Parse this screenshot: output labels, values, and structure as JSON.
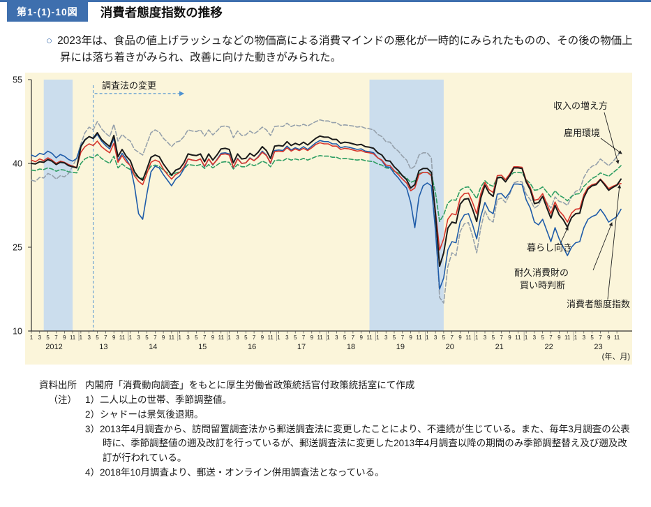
{
  "header": {
    "figure_no": "第1-(1)-10図",
    "title": "消費者態度指数の推移"
  },
  "summary": {
    "bullet": "○",
    "text": "2023年は、食品の値上げラッシュなどの物価高による消費マインドの悪化が一時的にみられたものの、その後の物価上昇には落ち着きがみられ、改善に向けた動きがみられた。"
  },
  "chart_data": {
    "type": "line",
    "title": "消費者態度指数の推移",
    "ylim": [
      10,
      55
    ],
    "yticks": [
      10,
      25,
      40,
      55
    ],
    "x_start": "2012-01",
    "x_end": "2023-12",
    "x_years": [
      "2012",
      "13",
      "14",
      "15",
      "16",
      "17",
      "18",
      "19",
      "20",
      "21",
      "22",
      "23"
    ],
    "month_ticks": [
      1,
      3,
      5,
      7,
      9,
      11
    ],
    "axis_note": "(年、月)",
    "grid": false,
    "recessions": [
      {
        "from_index": 3,
        "to_index": 10
      },
      {
        "from_index": 82,
        "to_index": 100
      }
    ],
    "survey_change": {
      "label": "調査法の変更",
      "index": 15
    },
    "colors": {
      "panel_bg": "#fbf5da",
      "recession_band": "#cbdded",
      "survey_annotation": "#4f92d1",
      "axis": "#333333"
    },
    "series": [
      {
        "name": "消費者態度指数",
        "color": "#1a1a1a",
        "dash": null,
        "width": 2,
        "values": [
          40.0,
          39.9,
          40.3,
          40.2,
          40.7,
          40.4,
          39.8,
          40.2,
          40.1,
          39.6,
          39.4,
          39.2,
          43.0,
          44.2,
          44.8,
          44.5,
          45.5,
          44.3,
          43.6,
          43.0,
          45.0,
          41.2,
          42.5,
          41.3,
          40.5,
          38.5,
          37.5,
          37.0,
          39.0,
          41.1,
          41.5,
          41.2,
          39.9,
          38.9,
          37.9,
          38.8,
          39.1,
          40.1,
          41.7,
          41.5,
          41.4,
          41.7,
          40.3,
          41.7,
          40.6,
          41.5,
          42.6,
          42.7,
          42.5,
          40.1,
          41.7,
          40.8,
          40.9,
          41.8,
          41.3,
          42.0,
          43.0,
          42.3,
          40.9,
          43.1,
          43.2,
          43.1,
          43.9,
          43.2,
          43.6,
          43.3,
          43.8,
          43.3,
          43.9,
          44.5,
          44.9,
          44.7,
          44.7,
          44.3,
          44.3,
          43.6,
          43.8,
          43.7,
          43.5,
          43.3,
          43.4,
          43.0,
          42.9,
          42.7,
          41.9,
          41.5,
          40.5,
          40.4,
          39.4,
          38.7,
          37.8,
          37.1,
          35.6,
          36.2,
          38.7,
          39.1,
          39.1,
          38.4,
          30.9,
          21.6,
          24.0,
          28.4,
          29.5,
          29.3,
          32.7,
          33.6,
          33.7,
          31.8,
          29.6,
          33.8,
          36.1,
          34.7,
          34.1,
          37.4,
          37.5,
          36.7,
          37.8,
          39.2,
          39.2,
          39.1,
          36.7,
          35.3,
          32.8,
          33.0,
          34.1,
          32.1,
          30.2,
          32.5,
          30.8,
          29.9,
          28.6,
          30.3,
          31.0,
          31.1,
          33.9,
          35.4,
          36.0,
          36.2,
          37.1,
          36.2,
          35.2,
          35.7,
          36.1,
          37.2
        ]
      },
      {
        "name": "暮らし向き",
        "color": "#d7362c",
        "dash": null,
        "width": 1.6,
        "values": [
          40.6,
          40.3,
          40.8,
          40.5,
          41.0,
          40.6,
          40.0,
          40.4,
          40.2,
          39.8,
          39.5,
          39.3,
          42.0,
          43.0,
          43.5,
          43.2,
          44.0,
          43.0,
          42.4,
          41.9,
          43.6,
          40.2,
          41.4,
          40.3,
          39.6,
          37.8,
          36.8,
          36.2,
          38.2,
          40.2,
          40.6,
          40.3,
          39.0,
          38.0,
          37.2,
          38.0,
          38.4,
          39.4,
          40.8,
          40.6,
          40.5,
          40.8,
          39.5,
          40.8,
          39.8,
          40.6,
          41.6,
          41.7,
          41.5,
          39.3,
          40.8,
          40.0,
          40.1,
          40.9,
          40.5,
          41.1,
          42.0,
          41.4,
          40.1,
          42.1,
          42.2,
          42.1,
          42.8,
          42.2,
          42.6,
          42.3,
          42.7,
          42.3,
          42.8,
          43.4,
          43.7,
          43.5,
          43.5,
          43.1,
          43.1,
          42.5,
          42.7,
          42.6,
          42.4,
          42.2,
          42.3,
          42.0,
          41.9,
          41.7,
          41.0,
          40.6,
          39.7,
          39.6,
          38.7,
          38.0,
          37.2,
          36.5,
          35.1,
          35.6,
          38.0,
          38.4,
          38.4,
          37.8,
          31.5,
          24.5,
          26.5,
          30.0,
          31.0,
          30.8,
          33.8,
          34.6,
          34.7,
          33.0,
          31.0,
          34.6,
          36.6,
          35.3,
          34.8,
          37.8,
          37.9,
          37.1,
          38.1,
          39.4,
          39.4,
          39.3,
          37.0,
          35.7,
          33.4,
          33.6,
          34.6,
          32.8,
          31.0,
          33.1,
          31.5,
          30.7,
          29.5,
          31.1,
          31.8,
          31.9,
          34.4,
          35.7,
          36.2,
          36.4,
          37.2,
          36.4,
          35.5,
          35.9,
          36.2,
          36.4
        ]
      },
      {
        "name": "収入の増え方",
        "color": "#2e9e63",
        "dash": "6 3",
        "width": 1.6,
        "values": [
          38.8,
          38.7,
          39.0,
          38.9,
          39.2,
          39.0,
          38.6,
          38.9,
          38.8,
          38.5,
          38.4,
          38.3,
          40.0,
          40.8,
          41.2,
          41.0,
          41.6,
          40.9,
          40.4,
          40.0,
          41.3,
          39.2,
          39.9,
          39.3,
          38.9,
          38.0,
          37.5,
          37.3,
          38.4,
          39.5,
          39.7,
          39.5,
          38.8,
          38.3,
          37.8,
          38.3,
          38.5,
          39.0,
          39.8,
          39.7,
          39.6,
          39.8,
          39.1,
          39.8,
          39.2,
          39.7,
          40.2,
          40.3,
          40.2,
          39.0,
          39.8,
          39.4,
          39.4,
          39.9,
          39.6,
          39.9,
          40.4,
          40.1,
          39.4,
          40.5,
          40.6,
          40.5,
          40.9,
          40.6,
          40.8,
          40.6,
          40.9,
          40.6,
          40.9,
          41.2,
          41.4,
          41.3,
          41.3,
          41.1,
          41.1,
          40.8,
          40.9,
          40.8,
          40.7,
          40.6,
          40.7,
          40.5,
          40.4,
          40.3,
          39.9,
          39.7,
          39.2,
          39.1,
          38.6,
          38.3,
          37.8,
          37.4,
          36.6,
          36.9,
          38.2,
          38.4,
          38.4,
          38.1,
          34.8,
          29.6,
          30.8,
          32.9,
          33.5,
          33.4,
          35.2,
          35.7,
          35.8,
          34.8,
          33.7,
          35.8,
          36.9,
          36.2,
          35.9,
          37.5,
          37.6,
          37.1,
          37.7,
          38.4,
          38.4,
          38.3,
          37.1,
          36.4,
          35.2,
          35.3,
          35.8,
          34.9,
          34.0,
          35.1,
          34.3,
          33.9,
          33.3,
          34.1,
          34.5,
          34.6,
          35.9,
          36.6,
          37.3,
          37.7,
          38.3,
          38.0,
          37.7,
          38.3,
          38.9,
          39.6
        ]
      },
      {
        "name": "雇用環境",
        "color": "#95a0ab",
        "dash": "6 3",
        "width": 1.6,
        "values": [
          37.0,
          36.8,
          37.5,
          37.4,
          38.2,
          37.9,
          37.2,
          37.8,
          37.6,
          38.2,
          39.5,
          41.0,
          43.5,
          45.5,
          46.5,
          46.0,
          47.5,
          46.2,
          45.4,
          44.8,
          47.0,
          44.0,
          45.2,
          44.5,
          44.0,
          42.5,
          42.0,
          41.5,
          43.5,
          45.5,
          46.0,
          45.6,
          44.5,
          43.8,
          43.0,
          43.8,
          44.0,
          44.8,
          46.0,
          45.8,
          45.7,
          46.0,
          44.9,
          46.0,
          45.1,
          45.8,
          46.6,
          46.7,
          46.5,
          44.6,
          45.8,
          45.0,
          45.1,
          45.8,
          45.3,
          45.8,
          46.5,
          46.0,
          45.0,
          46.6,
          46.7,
          46.6,
          47.2,
          46.6,
          46.9,
          46.7,
          47.0,
          46.7,
          47.1,
          47.5,
          47.8,
          47.6,
          47.6,
          47.3,
          47.3,
          46.8,
          46.9,
          46.8,
          46.7,
          46.5,
          46.6,
          46.3,
          46.2,
          46.0,
          45.2,
          44.8,
          43.9,
          43.8,
          42.8,
          42.2,
          41.3,
          40.6,
          39.0,
          39.5,
          41.5,
          41.9,
          41.9,
          41.0,
          30.0,
          16.0,
          15.0,
          21.5,
          24.0,
          23.5,
          27.8,
          29.2,
          29.4,
          27.0,
          24.0,
          28.5,
          31.5,
          30.0,
          29.5,
          33.5,
          33.8,
          33.0,
          34.5,
          36.5,
          36.8,
          36.7,
          34.5,
          33.5,
          32.0,
          32.5,
          34.0,
          33.0,
          32.0,
          34.0,
          33.2,
          33.0,
          32.5,
          34.0,
          35.0,
          35.3,
          37.5,
          38.8,
          39.5,
          39.8,
          40.8,
          40.2,
          39.6,
          40.3,
          41.2,
          42.2
        ]
      },
      {
        "name": "耐久消費財の買い時判断",
        "color": "#1f5ca9",
        "dash": null,
        "width": 1.6,
        "values": [
          41.5,
          41.2,
          41.8,
          41.6,
          42.2,
          41.8,
          41.0,
          41.6,
          41.3,
          40.7,
          40.4,
          40.9,
          43.2,
          44.3,
          44.8,
          44.4,
          45.2,
          44.0,
          43.2,
          42.6,
          44.5,
          40.5,
          41.8,
          40.8,
          39.5,
          36.0,
          31.0,
          30.0,
          34.5,
          38.5,
          39.5,
          39.2,
          38.0,
          37.0,
          36.0,
          37.2,
          37.8,
          39.0,
          40.8,
          40.6,
          40.5,
          40.8,
          39.4,
          40.8,
          39.7,
          40.7,
          41.8,
          41.9,
          41.7,
          39.2,
          40.9,
          40.0,
          40.1,
          41.0,
          40.5,
          41.2,
          42.2,
          41.5,
          40.0,
          42.3,
          42.4,
          42.3,
          43.1,
          42.4,
          42.8,
          42.5,
          43.0,
          42.5,
          43.1,
          43.7,
          44.1,
          43.9,
          43.9,
          43.5,
          43.5,
          42.8,
          43.0,
          42.9,
          42.7,
          42.5,
          42.6,
          42.2,
          42.1,
          41.9,
          41.0,
          40.5,
          39.4,
          39.3,
          38.2,
          37.4,
          36.4,
          35.6,
          33.0,
          28.5,
          34.0,
          36.0,
          36.5,
          36.0,
          28.0,
          17.5,
          19.5,
          24.5,
          26.0,
          25.8,
          29.5,
          30.8,
          31.0,
          29.0,
          26.5,
          30.5,
          33.0,
          31.5,
          31.0,
          34.5,
          34.6,
          33.8,
          34.8,
          36.3,
          36.3,
          36.2,
          33.5,
          32.0,
          29.5,
          29.0,
          30.0,
          28.0,
          26.0,
          28.5,
          26.5,
          25.0,
          23.5,
          25.0,
          25.8,
          26.0,
          28.5,
          30.0,
          30.5,
          30.8,
          31.8,
          30.8,
          29.5,
          30.0,
          30.5,
          31.8
        ]
      }
    ]
  },
  "notes": {
    "source_label": "資料出所",
    "source_text": "内閣府「消費動向調査」をもとに厚生労働省政策統括官付政策統括室にて作成",
    "note_label": "（注）",
    "items": [
      "1）二人以上の世帯、季節調整値。",
      "2）シャドーは景気後退期。",
      "3）2013年4月調査から、訪問留置調査法から郵送調査法に変更したことにより、不連続が生じている。また、毎年3月調査の公表時に、季節調整値の遡及改訂を行っているが、郵送調査法に変更した2013年4月調査以降の期間のみ季節調整替え及び遡及改訂が行われている。",
      "4）2018年10月調査より、郵送・オンライン併用調査法となっている。"
    ]
  }
}
